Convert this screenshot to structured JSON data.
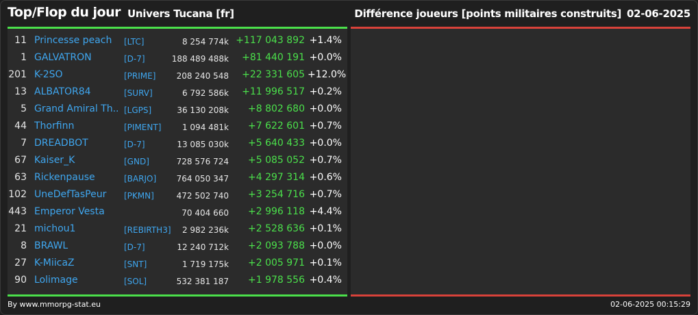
{
  "header": {
    "title": "Top/Flop du jour",
    "universe": "Univers Tucana [fr]",
    "subtitle": "Différence joueurs [points militaires construits]",
    "date": "02-06-2025"
  },
  "colors": {
    "background": "#1f1f1f",
    "panel": "#2b2b2b",
    "top_accent": "#4be04b",
    "flop_accent": "#d9423a",
    "player_link": "#3fa7f0",
    "positive_diff": "#4be04b"
  },
  "top_rows": [
    {
      "rank": "11",
      "name": "Princesse peach",
      "alliance": "[LTC]",
      "points": "8 254 774k",
      "diff": "+117 043 892",
      "pct": "+1.4%"
    },
    {
      "rank": "1",
      "name": "GALVATRON",
      "alliance": "[D-7]",
      "points": "188 489 488k",
      "diff": "+81 440 191",
      "pct": "+0.0%"
    },
    {
      "rank": "201",
      "name": "K-2SO",
      "alliance": "[PRIME]",
      "points": "208 240 548",
      "diff": "+22 331 605",
      "pct": "+12.0%"
    },
    {
      "rank": "13",
      "name": "ALBATOR84",
      "alliance": "[SURV]",
      "points": "6 792 586k",
      "diff": "+11 996 517",
      "pct": "+0.2%"
    },
    {
      "rank": "5",
      "name": "Grand Amiral Th...",
      "alliance": "[LGPS]",
      "points": "36 130 208k",
      "diff": "+8 802 680",
      "pct": "+0.0%"
    },
    {
      "rank": "44",
      "name": "Thorfinn",
      "alliance": "[PIMENT]",
      "points": "1 094 481k",
      "diff": "+7 622 601",
      "pct": "+0.7%"
    },
    {
      "rank": "7",
      "name": "DREADBOT",
      "alliance": "[D-7]",
      "points": "13 085 030k",
      "diff": "+5 640 433",
      "pct": "+0.0%"
    },
    {
      "rank": "67",
      "name": "Kaiser_K",
      "alliance": "[GND]",
      "points": "728 576 724",
      "diff": "+5 085 052",
      "pct": "+0.7%"
    },
    {
      "rank": "63",
      "name": "Rickenpause",
      "alliance": "[BARJO]",
      "points": "764 050 347",
      "diff": "+4 297 314",
      "pct": "+0.6%"
    },
    {
      "rank": "102",
      "name": "UneDefTasPeur",
      "alliance": "[PKMN]",
      "points": "472 502 740",
      "diff": "+3 254 716",
      "pct": "+0.7%"
    },
    {
      "rank": "443",
      "name": "Emperor Vesta",
      "alliance": "",
      "points": "70 404 660",
      "diff": "+2 996 118",
      "pct": "+4.4%"
    },
    {
      "rank": "21",
      "name": "michou1",
      "alliance": "[REBIRTH3]",
      "points": "2 982 236k",
      "diff": "+2 528 636",
      "pct": "+0.1%"
    },
    {
      "rank": "8",
      "name": "BRAWL",
      "alliance": "[D-7]",
      "points": "12 240 712k",
      "diff": "+2 093 788",
      "pct": "+0.0%"
    },
    {
      "rank": "27",
      "name": "K-MiicaZ",
      "alliance": "[SNT]",
      "points": "1 719 175k",
      "diff": "+2 005 971",
      "pct": "+0.1%"
    },
    {
      "rank": "90",
      "name": "Lolimage",
      "alliance": "[SOL]",
      "points": "532 381 187",
      "diff": "+1 978 556",
      "pct": "+0.4%"
    }
  ],
  "flop_rows": [],
  "footer": {
    "credit": "By www.mmorpg-stat.eu",
    "timestamp": "02-06-2025 00:15:29"
  }
}
